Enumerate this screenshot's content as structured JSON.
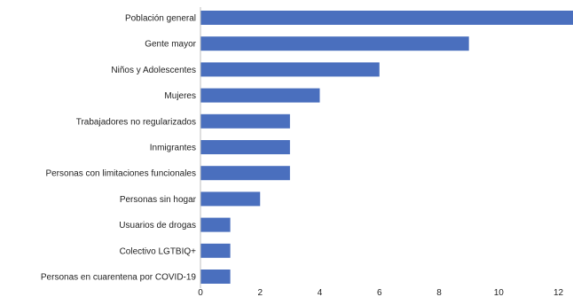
{
  "chart_data": {
    "type": "bar",
    "orientation": "horizontal",
    "categories": [
      "Población general",
      "Gente mayor",
      "Niños y Adolescentes",
      "Mujeres",
      "Trabajadores no regularizados",
      "Inmigrantes",
      "Personas con limitaciones funcionales",
      "Personas sin hogar",
      "Usuarios de drogas",
      "Colectivo LGTBIQ+",
      "Personas en cuarentena por COVID-19"
    ],
    "values": [
      13,
      9,
      6,
      4,
      3,
      3,
      3,
      2,
      1,
      1,
      1
    ],
    "x_ticks": [
      "0",
      "2",
      "4",
      "6",
      "8",
      "10",
      "12"
    ],
    "xlim": [
      0,
      12.4
    ],
    "grid": false,
    "legend": "none",
    "bar_color": "#4a6fbe",
    "title": "",
    "xlabel": "",
    "ylabel": ""
  }
}
